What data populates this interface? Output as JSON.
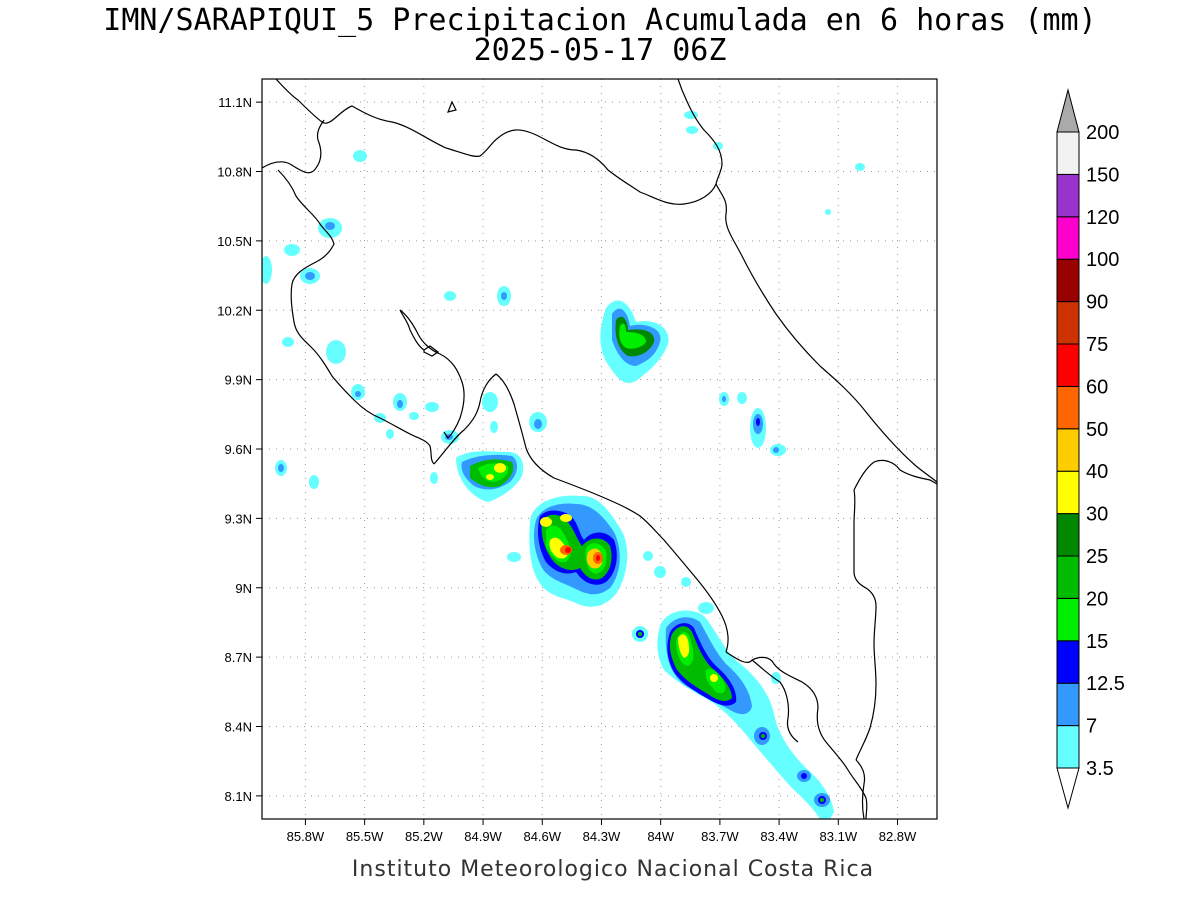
{
  "title": {
    "line1": "IMN/SARAPIQUI_5 Precipitacion Acumulada en 6 horas (mm)",
    "line2": "2025-05-17 06Z"
  },
  "footer": "Instituto Meteorologico Nacional Costa Rica",
  "map": {
    "lon_range": [
      -86.02,
      -82.6
    ],
    "lat_range": [
      8.0,
      11.2
    ],
    "x_ticks": [
      "85.8W",
      "85.5W",
      "85.2W",
      "84.9W",
      "84.6W",
      "84.3W",
      "84W",
      "83.7W",
      "83.4W",
      "83.1W",
      "82.8W"
    ],
    "x_tick_values": [
      -85.8,
      -85.5,
      -85.2,
      -84.9,
      -84.6,
      -84.3,
      -84.0,
      -83.7,
      -83.4,
      -83.1,
      -82.8
    ],
    "y_ticks": [
      "11.1N",
      "10.8N",
      "10.5N",
      "10.2N",
      "9.9N",
      "9.6N",
      "9.3N",
      "9N",
      "8.7N",
      "8.4N",
      "8.1N"
    ],
    "y_tick_values": [
      11.1,
      10.8,
      10.5,
      10.2,
      9.9,
      9.6,
      9.3,
      9.0,
      8.7,
      8.4,
      8.1
    ],
    "grid": "dotted"
  },
  "legend": {
    "labels": [
      "3.5",
      "7",
      "12.5",
      "15",
      "20",
      "25",
      "30",
      "40",
      "50",
      "60",
      "75",
      "90",
      "100",
      "120",
      "150",
      "200"
    ],
    "colors": [
      "#66ffff",
      "#3399ff",
      "#0000ff",
      "#00ee00",
      "#00bb00",
      "#008800",
      "#ffff00",
      "#ffcc00",
      "#ff6600",
      "#ff0000",
      "#cc3300",
      "#990000",
      "#ff00cc",
      "#9933cc",
      "#f2f2f2",
      "#aaaaaa"
    ],
    "placement": "right",
    "orientation": "vertical"
  },
  "rain_levels": [
    {
      "level": 0,
      "color": "#66ffff"
    },
    {
      "level": 1,
      "color": "#3399ff"
    },
    {
      "level": 2,
      "color": "#0000ff"
    },
    {
      "level": 3,
      "color": "#00ee00"
    },
    {
      "level": 4,
      "color": "#00bb00"
    },
    {
      "level": 5,
      "color": "#008800"
    },
    {
      "level": 6,
      "color": "#ffff00"
    },
    {
      "level": 7,
      "color": "#ffcc00"
    },
    {
      "level": 8,
      "color": "#ff6600"
    },
    {
      "level": 9,
      "color": "#ff0000"
    }
  ]
}
